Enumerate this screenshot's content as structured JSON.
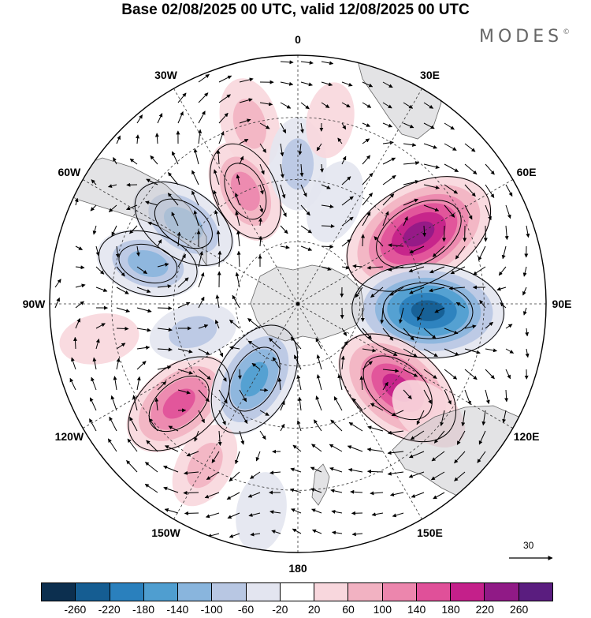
{
  "title": "Base 02/08/2025 00 UTC, valid 12/08/2025 00 UTC",
  "brand": {
    "name": "MODES",
    "mark": "©"
  },
  "meridians": [
    {
      "label": "0",
      "lon": 0
    },
    {
      "label": "30E",
      "lon": 30
    },
    {
      "label": "60E",
      "lon": 60
    },
    {
      "label": "90E",
      "lon": 90
    },
    {
      "label": "120E",
      "lon": 120
    },
    {
      "label": "150E",
      "lon": 150
    },
    {
      "label": "180",
      "lon": 180
    },
    {
      "label": "150W",
      "lon": -150
    },
    {
      "label": "120W",
      "lon": -120
    },
    {
      "label": "90W",
      "lon": -90
    },
    {
      "label": "60W",
      "lon": -60
    },
    {
      "label": "30W",
      "lon": -30
    }
  ],
  "reference_vector": {
    "label": "30"
  },
  "colorbar": {
    "ticks": [
      "-260",
      "-220",
      "-180",
      "-140",
      "-100",
      "-60",
      "-20",
      "20",
      "60",
      "100",
      "140",
      "180",
      "220",
      "260"
    ],
    "colors": [
      "#0c2f4f",
      "#155d92",
      "#2a80bd",
      "#4f9ed0",
      "#89b5dd",
      "#b8c7e3",
      "#e3e5f0",
      "#ffffff",
      "#f8d7dd",
      "#f2b2c2",
      "#ec86ad",
      "#e05099",
      "#c4208a",
      "#901a86",
      "#5a1d7f"
    ]
  },
  "anomalies": [
    {
      "lat": -45,
      "lon": 60,
      "value": 240
    },
    {
      "lat": -48,
      "lon": 93,
      "value": -230
    },
    {
      "lat": -48,
      "lon": 130,
      "value": 190
    },
    {
      "lat": -40,
      "lon": -130,
      "value": 150
    },
    {
      "lat": -62,
      "lon": -150,
      "value": -150
    },
    {
      "lat": -40,
      "lon": -75,
      "value": -110
    },
    {
      "lat": -45,
      "lon": -55,
      "value": -130
    },
    {
      "lat": -30,
      "lon": -15,
      "value": 80
    },
    {
      "lat": -50,
      "lon": -25,
      "value": 110
    },
    {
      "lat": -45,
      "lon": 0,
      "value": -80
    },
    {
      "lat": -55,
      "lon": 20,
      "value": -60
    },
    {
      "lat": -30,
      "lon": 10,
      "value": 40
    },
    {
      "lat": -35,
      "lon": 130,
      "value": 60
    },
    {
      "lat": -25,
      "lon": -100,
      "value": 50
    },
    {
      "lat": -55,
      "lon": -105,
      "value": -70
    },
    {
      "lat": -30,
      "lon": -150,
      "value": 70
    },
    {
      "lat": -22,
      "lon": -170,
      "value": -50
    }
  ]
}
